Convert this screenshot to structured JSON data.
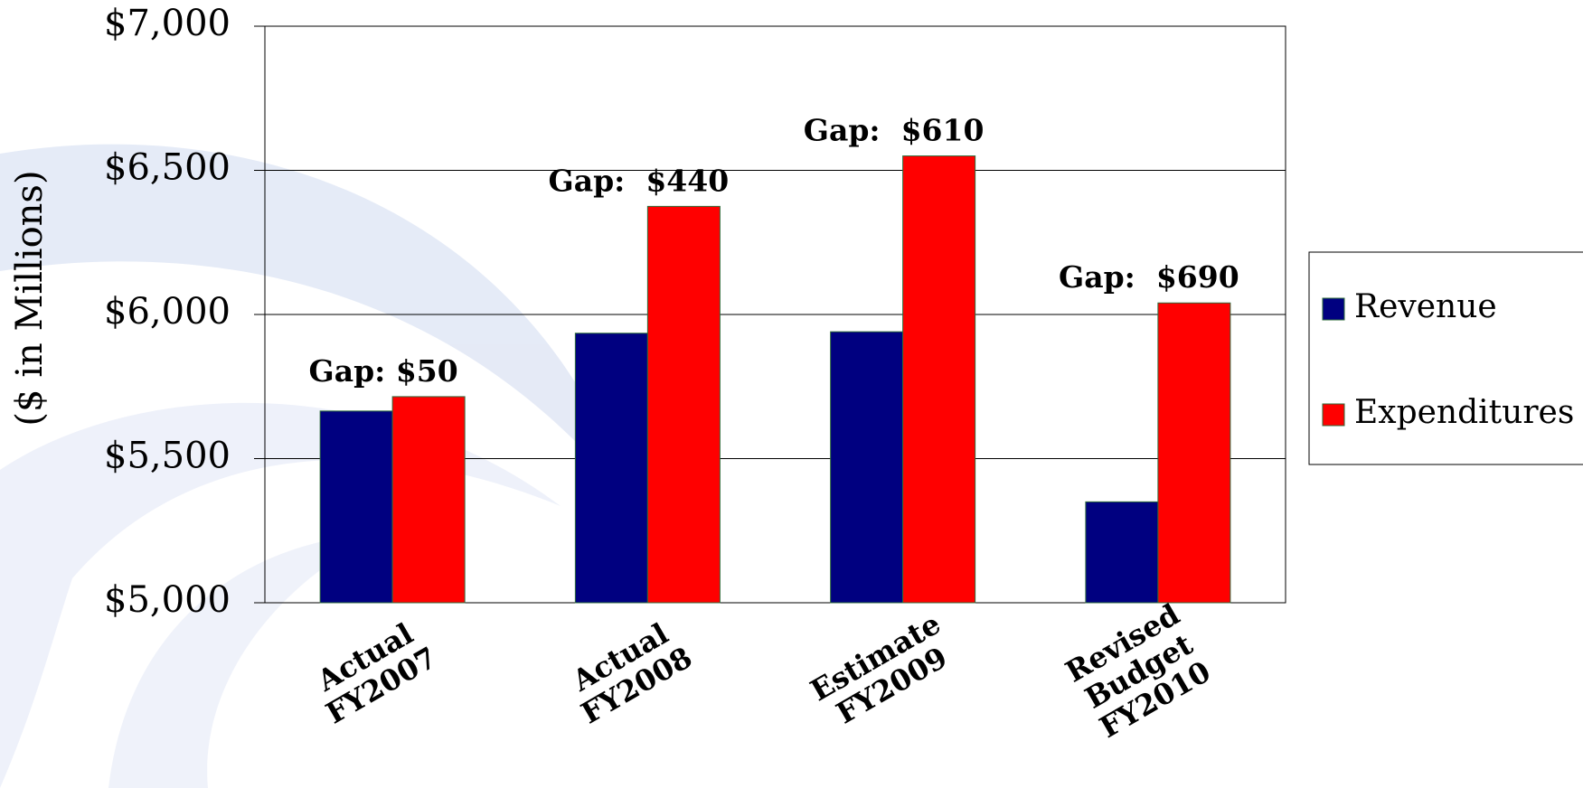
{
  "chart_data": {
    "type": "bar",
    "y_label": "($ in Millions)",
    "categories": [
      [
        "Actual",
        "FY2007"
      ],
      [
        "Actual",
        "FY2008"
      ],
      [
        "Estimate",
        "FY2009"
      ],
      [
        "Revised",
        "Budget",
        "FY2010"
      ]
    ],
    "series": [
      {
        "name": "Revenue",
        "color": "#000080",
        "values": [
          5665,
          5935,
          5940,
          5350
        ]
      },
      {
        "name": "Expenditures",
        "color": "#ff0000",
        "values": [
          5715,
          6375,
          6550,
          6040
        ]
      }
    ],
    "annotations": [
      "Gap: $50",
      "Gap:  $440",
      "Gap:  $610",
      "Gap:  $690"
    ],
    "ylim": [
      5000,
      7000
    ],
    "yticks": [
      {
        "value": 5000,
        "label": "$5,000"
      },
      {
        "value": 5500,
        "label": "$5,500"
      },
      {
        "value": 6000,
        "label": "$6,000"
      },
      {
        "value": 6500,
        "label": "$6,500"
      },
      {
        "value": 7000,
        "label": "$7,000"
      }
    ],
    "grid": true
  }
}
